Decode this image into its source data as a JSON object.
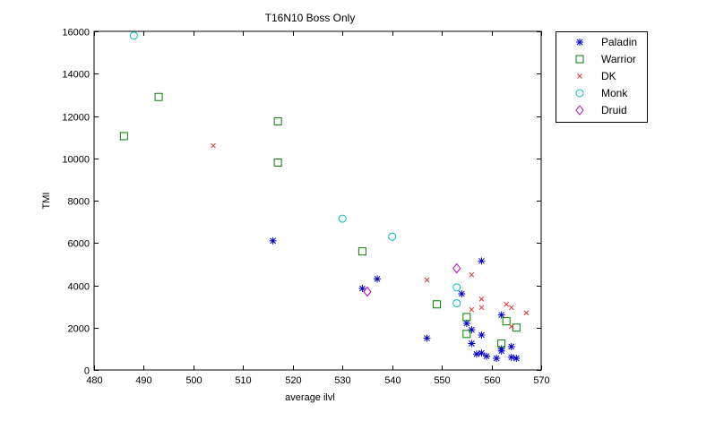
{
  "chart_data": {
    "type": "scatter",
    "title": "T16N10 Boss Only",
    "xlabel": "average ilvl",
    "ylabel": "TMI",
    "xlim": [
      480,
      570
    ],
    "ylim": [
      0,
      16000
    ],
    "xticks": [
      480,
      490,
      500,
      510,
      520,
      530,
      540,
      550,
      560,
      570
    ],
    "yticks": [
      0,
      2000,
      4000,
      6000,
      8000,
      10000,
      12000,
      14000,
      16000
    ],
    "grid": false,
    "legend_position": "outside-top-right",
    "series": [
      {
        "name": "Paladin",
        "marker": "asterisk",
        "color": "#0000cc",
        "points": [
          [
            516,
            6100
          ],
          [
            534,
            3850
          ],
          [
            537,
            4300
          ],
          [
            547,
            1500
          ],
          [
            554,
            3600
          ],
          [
            555,
            2200
          ],
          [
            556,
            1900
          ],
          [
            556,
            1250
          ],
          [
            557,
            750
          ],
          [
            558,
            5150
          ],
          [
            558,
            1650
          ],
          [
            558,
            800
          ],
          [
            559,
            650
          ],
          [
            561,
            550
          ],
          [
            562,
            2600
          ],
          [
            562,
            1000
          ],
          [
            562,
            900
          ],
          [
            564,
            1100
          ],
          [
            564,
            600
          ],
          [
            565,
            550
          ]
        ]
      },
      {
        "name": "Warrior",
        "marker": "square",
        "color": "#008000",
        "points": [
          [
            486,
            11050
          ],
          [
            493,
            12900
          ],
          [
            517,
            11750
          ],
          [
            517,
            9800
          ],
          [
            534,
            5600
          ],
          [
            549,
            3100
          ],
          [
            555,
            2500
          ],
          [
            555,
            1700
          ],
          [
            562,
            1250
          ],
          [
            563,
            2300
          ],
          [
            565,
            2000
          ]
        ]
      },
      {
        "name": "DK",
        "marker": "x",
        "color": "#e03030",
        "points": [
          [
            504,
            10600
          ],
          [
            547,
            4250
          ],
          [
            556,
            4500
          ],
          [
            556,
            2850
          ],
          [
            558,
            3350
          ],
          [
            558,
            2950
          ],
          [
            563,
            3100
          ],
          [
            564,
            2950
          ],
          [
            564,
            2050
          ],
          [
            567,
            2700
          ]
        ]
      },
      {
        "name": "Monk",
        "marker": "circle",
        "color": "#00bfbf",
        "points": [
          [
            488,
            15800
          ],
          [
            530,
            7150
          ],
          [
            540,
            6300
          ],
          [
            553,
            3900
          ],
          [
            553,
            3150
          ]
        ]
      },
      {
        "name": "Druid",
        "marker": "diamond",
        "color": "#bf00bf",
        "points": [
          [
            535,
            3700
          ],
          [
            553,
            4800
          ]
        ]
      }
    ]
  }
}
